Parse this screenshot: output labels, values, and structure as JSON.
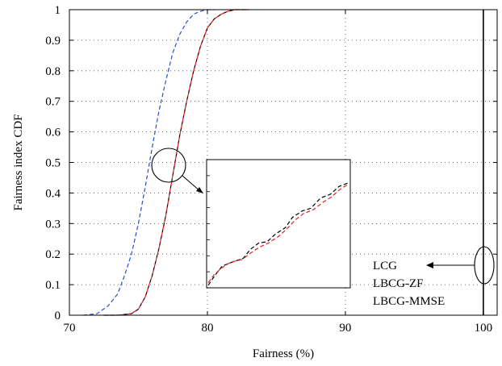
{
  "chart_data": {
    "type": "line",
    "title": "",
    "xlabel": "Fairness (%)",
    "ylabel": "Fairness index CDF",
    "xlim": [
      70,
      101
    ],
    "ylim": [
      0,
      1
    ],
    "xticks": [
      70,
      80,
      90,
      100
    ],
    "yticks": [
      0,
      0.1,
      0.2,
      0.3,
      0.4,
      0.5,
      0.6,
      0.7,
      0.8,
      0.9,
      1
    ],
    "grid": true,
    "series": [
      {
        "name": "",
        "color": "#2a4fc9",
        "style": "dashed",
        "x": [
          71,
          72,
          72.8,
          73.5,
          74.0,
          74.5,
          75.0,
          75.5,
          76.0,
          76.5,
          77.0,
          77.5,
          78.0,
          78.5,
          79.0,
          79.5,
          80.0,
          80.5
        ],
        "y": [
          0,
          0.005,
          0.03,
          0.07,
          0.13,
          0.2,
          0.3,
          0.42,
          0.55,
          0.67,
          0.77,
          0.86,
          0.92,
          0.96,
          0.985,
          0.995,
          1.0,
          1.0
        ]
      },
      {
        "name": "",
        "color": "#000000",
        "style": "dashed",
        "x": [
          72.5,
          73.5,
          74.5,
          75.0,
          75.5,
          76.0,
          76.5,
          77.0,
          77.5,
          78.0,
          78.5,
          79.0,
          79.5,
          80.0,
          80.5,
          81.0,
          81.5,
          82.0,
          83.0
        ],
        "y": [
          0,
          0.0,
          0.005,
          0.02,
          0.06,
          0.13,
          0.22,
          0.33,
          0.46,
          0.59,
          0.7,
          0.8,
          0.88,
          0.94,
          0.97,
          0.985,
          0.995,
          1.0,
          1.0
        ]
      },
      {
        "name": "",
        "color": "#e02020",
        "style": "dashed",
        "x": [
          72.5,
          73.5,
          74.5,
          75.0,
          75.5,
          76.0,
          76.5,
          77.0,
          77.5,
          78.0,
          78.5,
          79.0,
          79.5,
          80.0,
          80.5,
          81.0,
          81.5,
          82.0,
          83.0
        ],
        "y": [
          0,
          0.0,
          0.005,
          0.02,
          0.06,
          0.13,
          0.22,
          0.33,
          0.46,
          0.59,
          0.7,
          0.8,
          0.88,
          0.94,
          0.97,
          0.985,
          0.995,
          1.0,
          1.0
        ]
      },
      {
        "name": "",
        "color": "#000000",
        "style": "solid",
        "x": [
          100,
          100
        ],
        "y": [
          0,
          1
        ]
      }
    ],
    "annotations": [
      {
        "text": "LCG",
        "x": 100,
        "y": 0.18
      },
      {
        "text": "LBCG-ZF",
        "x": 100,
        "y": 0.12
      },
      {
        "text": "LBCG-MMSE",
        "x": 100,
        "y": 0.06
      }
    ]
  }
}
